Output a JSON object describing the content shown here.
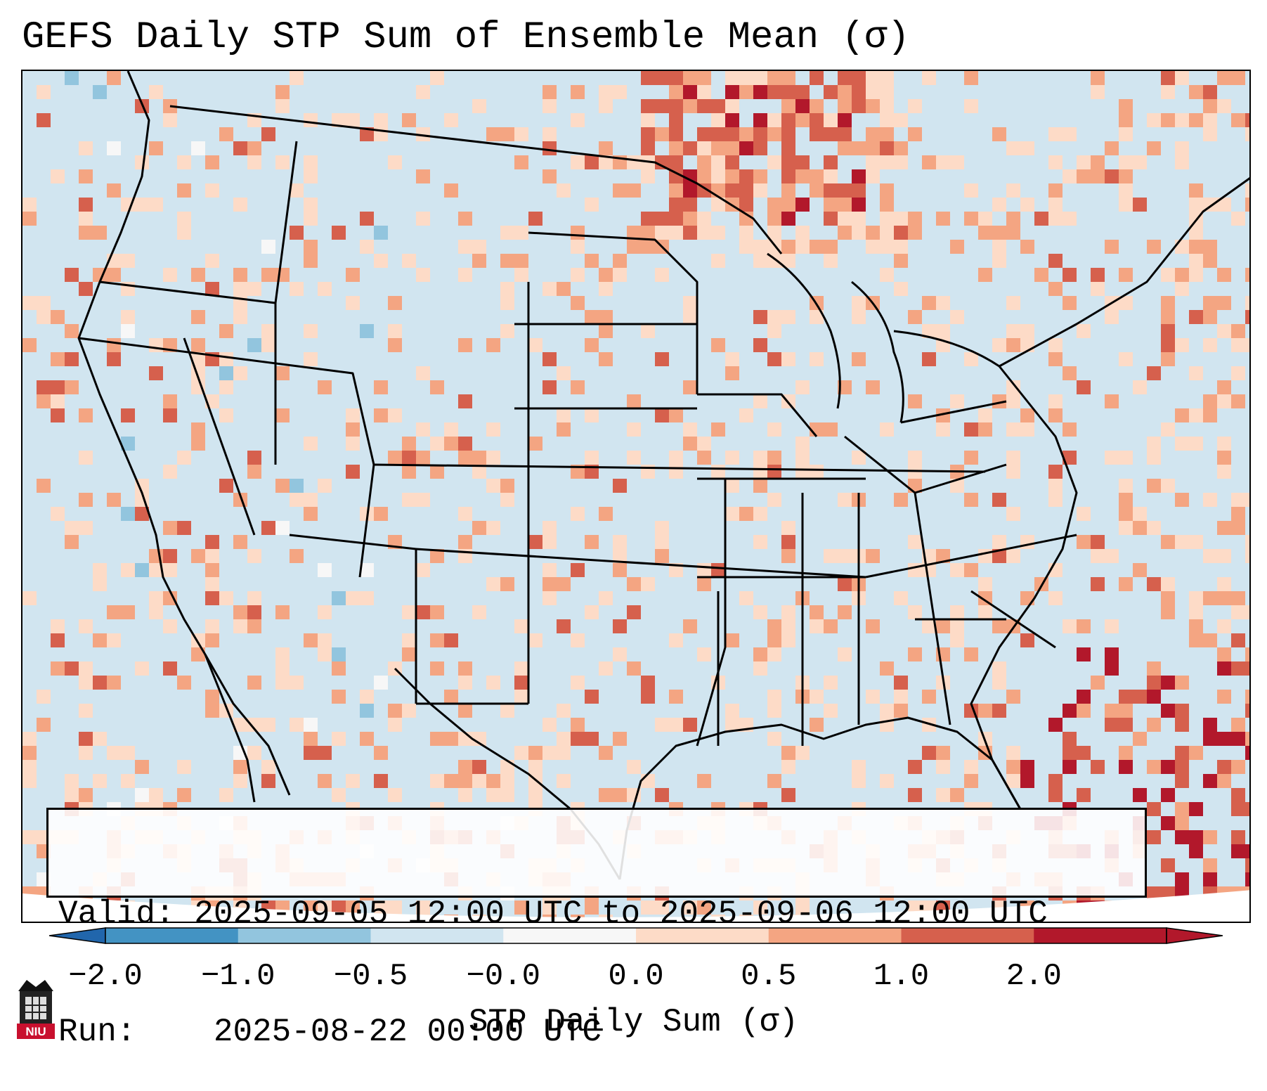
{
  "title": "GEFS Daily STP Sum of Ensemble Mean (σ)",
  "info": {
    "valid_label": "Valid:",
    "valid_range": "2025-09-05 12:00 UTC to 2025-09-06 12:00 UTC",
    "run_label": "Run:",
    "run_time": "2025-08-22 00:00 UTC"
  },
  "colorbar": {
    "label": "STP Daily Sum (σ)",
    "ticks": [
      "−2.0",
      "−1.0",
      "−0.5",
      "−0.0",
      "0.0",
      "0.5",
      "1.0",
      "2.0"
    ],
    "bins": [
      {
        "range": "-2.0 to -1.0",
        "color": "#4393c3"
      },
      {
        "range": "-1.0 to -0.5",
        "color": "#92c5de"
      },
      {
        "range": "-0.5 to -0.0",
        "color": "#d1e5f0"
      },
      {
        "range": "-0.0 to 0.0",
        "color": "#f7f7f7"
      },
      {
        "range": "0.0 to 0.5",
        "color": "#fddbc7"
      },
      {
        "range": "0.5 to 1.0",
        "color": "#f4a582"
      },
      {
        "range": "1.0 to 2.0",
        "color": "#d6604d"
      },
      {
        "range": "above 2.0",
        "color": "#b2182b"
      }
    ],
    "extend_low_color": "#2166ac",
    "extend_high_color": "#b2182b"
  },
  "logo": {
    "text": "NIU",
    "icon": "niu-building-icon"
  }
}
